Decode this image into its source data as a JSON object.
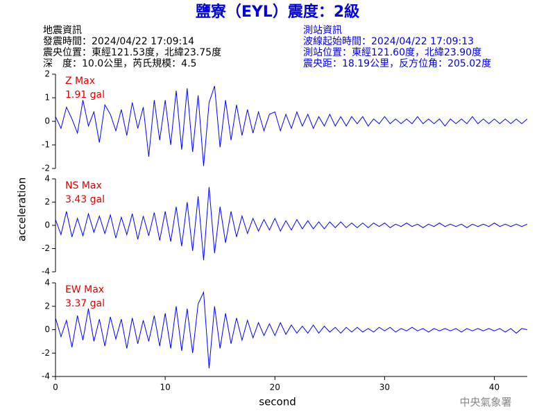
{
  "title": "鹽寮（EYL）震度：2級",
  "header_left": [
    "地震資訊",
    "發震時間：2024/04/22 17:09:14",
    "震央位置：東經121.53度，北緯23.75度",
    "深　度：10.0公里，芮氏規模：4.5"
  ],
  "header_right": [
    "測站資訊",
    "波線起始時間：2024/04/22 17:09:13",
    "測站位置：東經121.60度，北緯23.90度",
    "震央距：18.19公里，反方位角：205.02度"
  ],
  "ylabel": "acceleration",
  "xlabel": "second",
  "credit": "中央氣象署",
  "chart_data": [
    {
      "type": "line",
      "annotation": [
        "Z Max",
        "1.91 gal"
      ],
      "x": [
        0,
        0.5,
        1,
        1.5,
        2,
        2.5,
        3,
        3.5,
        4,
        4.5,
        5,
        5.5,
        6,
        6.5,
        7,
        7.5,
        8,
        8.5,
        9,
        9.5,
        10,
        10.5,
        11,
        11.5,
        12,
        12.5,
        13,
        13.5,
        14,
        14.5,
        15,
        15.5,
        16,
        16.5,
        17,
        17.5,
        18,
        18.5,
        19,
        19.5,
        20,
        20.5,
        21,
        21.5,
        22,
        22.5,
        23,
        23.5,
        24,
        24.5,
        25,
        25.5,
        26,
        26.5,
        27,
        27.5,
        28,
        28.5,
        29,
        29.5,
        30,
        30.5,
        31,
        31.5,
        32,
        32.5,
        33,
        33.5,
        34,
        34.5,
        35,
        35.5,
        36,
        36.5,
        37,
        37.5,
        38,
        38.5,
        39,
        39.5,
        40,
        40.5,
        41,
        41.5,
        42,
        42.5,
        43
      ],
      "series": [
        {
          "color": "#0000ff",
          "values": [
            0.2,
            -0.3,
            0.6,
            0.1,
            -0.5,
            0.9,
            -0.2,
            0.4,
            -0.9,
            0.7,
            0.3,
            -0.4,
            0.5,
            -0.6,
            0.8,
            -0.3,
            0.6,
            -1.5,
            0.9,
            -0.8,
            0.9,
            -1.0,
            1.3,
            -1.2,
            1.4,
            -1.3,
            1.1,
            -1.9,
            0.8,
            1.5,
            -1.1,
            0.9,
            -0.8,
            0.7,
            -0.6,
            0.5,
            -0.5,
            0.4,
            -0.4,
            0.3,
            0.4,
            -0.4,
            0.3,
            -0.3,
            0.4,
            -0.2,
            0.3,
            -0.3,
            0.2,
            -0.2,
            0.3,
            -0.2,
            0.2,
            -0.2,
            0.2,
            -0.1,
            0.2,
            -0.2,
            0.1,
            -0.1,
            0.2,
            -0.1,
            0.1,
            -0.1,
            0.1,
            -0.1,
            0.2,
            -0.1,
            0.1,
            -0.1,
            0.1,
            -0.2,
            0.1,
            -0.1,
            0.1,
            -0.1,
            0.2,
            -0.1,
            0.1,
            -0.1,
            0.1,
            -0.1,
            0.1,
            -0.1,
            0.1,
            -0.1,
            0.1
          ]
        }
      ],
      "xlim": [
        0,
        43
      ],
      "ylim": [
        -2,
        2
      ],
      "yticks": [
        -2,
        -1,
        0,
        1,
        2
      ]
    },
    {
      "type": "line",
      "annotation": [
        "NS Max",
        "3.43 gal"
      ],
      "x": [
        0,
        0.5,
        1,
        1.5,
        2,
        2.5,
        3,
        3.5,
        4,
        4.5,
        5,
        5.5,
        6,
        6.5,
        7,
        7.5,
        8,
        8.5,
        9,
        9.5,
        10,
        10.5,
        11,
        11.5,
        12,
        12.5,
        13,
        13.5,
        14,
        14.5,
        15,
        15.5,
        16,
        16.5,
        17,
        17.5,
        18,
        18.5,
        19,
        19.5,
        20,
        20.5,
        21,
        21.5,
        22,
        22.5,
        23,
        23.5,
        24,
        24.5,
        25,
        25.5,
        26,
        26.5,
        27,
        27.5,
        28,
        28.5,
        29,
        29.5,
        30,
        30.5,
        31,
        31.5,
        32,
        32.5,
        33,
        33.5,
        34,
        34.5,
        35,
        35.5,
        36,
        36.5,
        37,
        37.5,
        38,
        38.5,
        39,
        39.5,
        40,
        40.5,
        41,
        41.5,
        42,
        42.5,
        43
      ],
      "series": [
        {
          "color": "#0000ff",
          "values": [
            0.5,
            -0.8,
            1.2,
            -1.0,
            0.6,
            -0.9,
            1.0,
            -0.6,
            0.8,
            -0.7,
            0.9,
            -1.1,
            0.7,
            -0.8,
            1.0,
            -1.2,
            0.8,
            -0.9,
            1.1,
            -1.3,
            1.2,
            -1.4,
            1.6,
            -1.8,
            2.0,
            -2.2,
            2.5,
            -3.0,
            3.3,
            -2.4,
            1.6,
            -1.5,
            1.2,
            -1.0,
            0.8,
            -0.7,
            0.6,
            -0.5,
            0.5,
            -0.4,
            0.6,
            -0.5,
            0.4,
            -0.4,
            0.5,
            -0.3,
            0.4,
            -0.3,
            0.3,
            -0.3,
            0.3,
            -0.2,
            0.3,
            -0.2,
            0.2,
            -0.2,
            0.2,
            -0.2,
            0.2,
            -0.1,
            0.2,
            -0.2,
            0.1,
            -0.1,
            0.2,
            -0.1,
            0.1,
            -0.2,
            0.1,
            -0.1,
            0.2,
            -0.1,
            0.1,
            -0.1,
            0.1,
            -0.2,
            0.1,
            -0.1,
            0.1,
            -0.1,
            0.2,
            -0.1,
            0.1,
            -0.1,
            0.1,
            -0.1,
            0.1
          ]
        }
      ],
      "xlim": [
        0,
        43
      ],
      "ylim": [
        -4,
        4
      ],
      "yticks": [
        -4,
        -2,
        0,
        2,
        4
      ]
    },
    {
      "type": "line",
      "annotation": [
        "EW Max",
        "3.37 gal"
      ],
      "x": [
        0,
        0.5,
        1,
        1.5,
        2,
        2.5,
        3,
        3.5,
        4,
        4.5,
        5,
        5.5,
        6,
        6.5,
        7,
        7.5,
        8,
        8.5,
        9,
        9.5,
        10,
        10.5,
        11,
        11.5,
        12,
        12.5,
        13,
        13.5,
        14,
        14.5,
        15,
        15.5,
        16,
        16.5,
        17,
        17.5,
        18,
        18.5,
        19,
        19.5,
        20,
        20.5,
        21,
        21.5,
        22,
        22.5,
        23,
        23.5,
        24,
        24.5,
        25,
        25.5,
        26,
        26.5,
        27,
        27.5,
        28,
        28.5,
        29,
        29.5,
        30,
        30.5,
        31,
        31.5,
        32,
        32.5,
        33,
        33.5,
        34,
        34.5,
        35,
        35.5,
        36,
        36.5,
        37,
        37.5,
        38,
        38.5,
        39,
        39.5,
        40,
        40.5,
        41,
        41.5,
        42,
        42.5,
        43
      ],
      "series": [
        {
          "color": "#0000ff",
          "values": [
            1.0,
            -0.6,
            0.8,
            -1.5,
            1.2,
            -0.9,
            1.8,
            -1.0,
            0.9,
            -1.4,
            1.1,
            -0.8,
            0.9,
            -1.6,
            1.0,
            -1.2,
            0.8,
            -1.0,
            1.2,
            -1.4,
            1.4,
            -1.6,
            2.0,
            -1.8,
            1.8,
            -2.0,
            2.2,
            3.2,
            -3.3,
            2.0,
            -1.6,
            1.4,
            -1.2,
            1.0,
            -0.9,
            0.8,
            -0.7,
            0.6,
            -0.5,
            0.5,
            -0.5,
            0.6,
            -0.4,
            0.4,
            -0.3,
            0.3,
            -0.3,
            0.4,
            -0.3,
            0.3,
            -0.2,
            0.2,
            -0.3,
            0.2,
            -0.2,
            0.2,
            -0.2,
            0.1,
            -0.2,
            0.2,
            -0.1,
            0.2,
            -0.2,
            0.1,
            -0.1,
            0.2,
            -0.1,
            0.1,
            -0.2,
            0.1,
            -0.1,
            0.1,
            -0.1,
            0.1,
            -0.2,
            0.1,
            -0.1,
            0.1,
            -0.1,
            0.1,
            -0.1,
            0.1,
            -0.2,
            0.1,
            -0.3,
            0.1,
            0.0
          ]
        }
      ],
      "xlim": [
        0,
        43
      ],
      "ylim": [
        -4,
        4
      ],
      "yticks": [
        -4,
        -2,
        0,
        2,
        4
      ],
      "xticks": [
        0,
        10,
        20,
        30,
        40
      ]
    }
  ]
}
